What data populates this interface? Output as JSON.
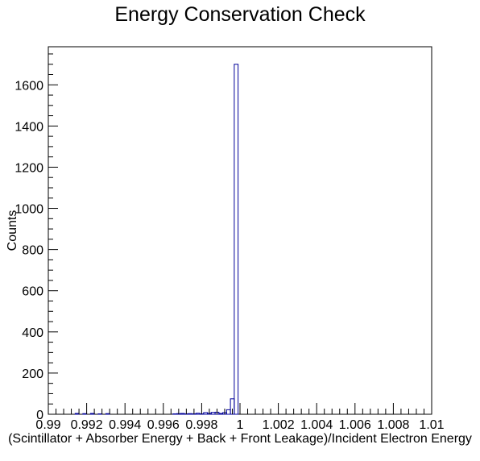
{
  "chart_data": {
    "type": "bar",
    "title": "Energy Conservation Check",
    "xlabel": "(Scintillator + Absorber Energy + Back + Front Leakage)/Incident Electron Energy",
    "ylabel": "Counts",
    "xlim": [
      0.99,
      1.01
    ],
    "ylim": [
      0,
      1785
    ],
    "x_ticks": [
      0.99,
      0.992,
      0.994,
      0.996,
      0.998,
      1,
      1.002,
      1.004,
      1.006,
      1.008,
      1.01
    ],
    "x_tick_labels": [
      "0.99",
      "0.992",
      "0.994",
      "0.996",
      "0.998",
      "1",
      "1.002",
      "1.004",
      "1.006",
      "1.008",
      "1.01"
    ],
    "y_ticks": [
      0,
      200,
      400,
      600,
      800,
      1000,
      1200,
      1400,
      1600
    ],
    "y_tick_labels": [
      "0",
      "200",
      "400",
      "600",
      "800",
      "1000",
      "1200",
      "1400",
      "1600"
    ],
    "bin_width": 0.0002,
    "bins_x_low": [
      0.9914,
      0.9918,
      0.9922,
      0.9926,
      0.993,
      0.9965,
      0.9967,
      0.9969,
      0.9971,
      0.9973,
      0.9975,
      0.9977,
      0.9979,
      0.9981,
      0.9983,
      0.9985,
      0.9987,
      0.9989,
      0.9991,
      0.9993,
      0.9995,
      0.9997
    ],
    "values": [
      4,
      3,
      4,
      2,
      3,
      2,
      3,
      4,
      2,
      3,
      2,
      5,
      2,
      8,
      5,
      9,
      10,
      4,
      8,
      22,
      75,
      1700
    ],
    "color": "#000099",
    "grid": false,
    "legend": "none"
  }
}
